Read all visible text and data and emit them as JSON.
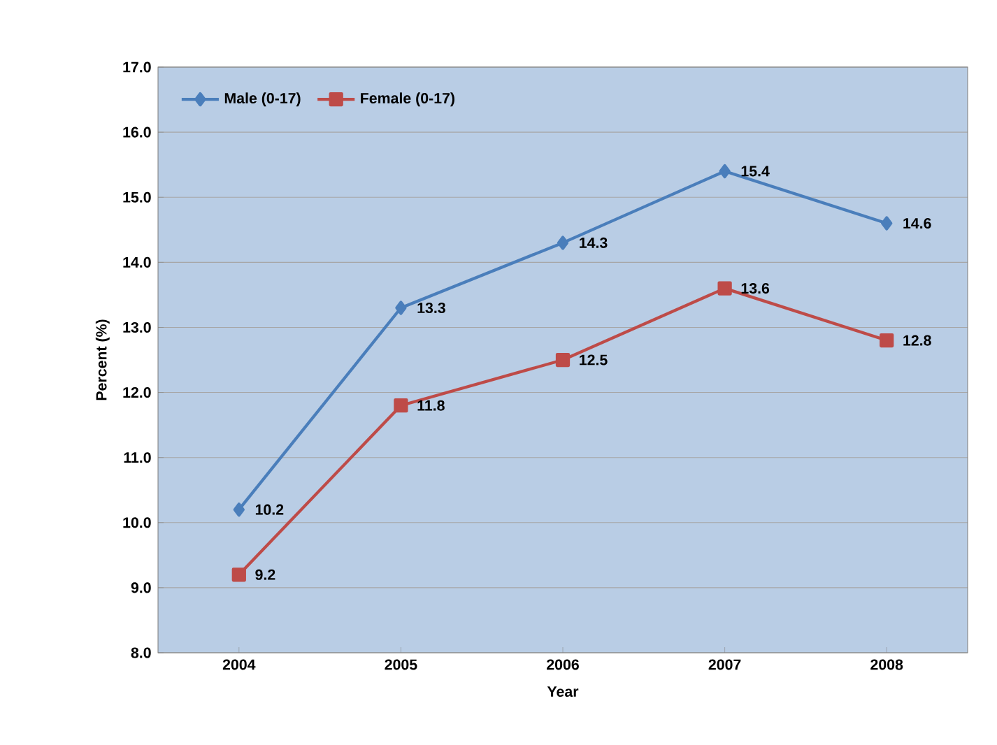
{
  "chart_data": {
    "type": "line",
    "xlabel": "Year",
    "ylabel": "Percent (%)",
    "categories": [
      "2004",
      "2005",
      "2006",
      "2007",
      "2008"
    ],
    "series": [
      {
        "name": "Male (0-17)",
        "color": "#4a7ebb",
        "marker": "diamond",
        "values": [
          10.2,
          13.3,
          14.3,
          15.4,
          14.6
        ]
      },
      {
        "name": "Female (0-17)",
        "color": "#be4b48",
        "marker": "square",
        "values": [
          9.2,
          11.8,
          12.5,
          13.6,
          12.8
        ]
      }
    ],
    "ylim": [
      8,
      17
    ],
    "yticks": [
      {
        "value": 8,
        "label": "8.0"
      },
      {
        "value": 9,
        "label": "9.0"
      },
      {
        "value": 10,
        "label": "10.0"
      },
      {
        "value": 11,
        "label": "11.0"
      },
      {
        "value": 12,
        "label": "12.0"
      },
      {
        "value": 13,
        "label": "13.0"
      },
      {
        "value": 14,
        "label": "14.0"
      },
      {
        "value": 15,
        "label": "15.0"
      },
      {
        "value": 16,
        "label": "16.0"
      },
      {
        "value": 17,
        "label": "17.0"
      }
    ],
    "grid": "y",
    "legend": "top left",
    "data_labels": true,
    "line_style": "solid"
  }
}
